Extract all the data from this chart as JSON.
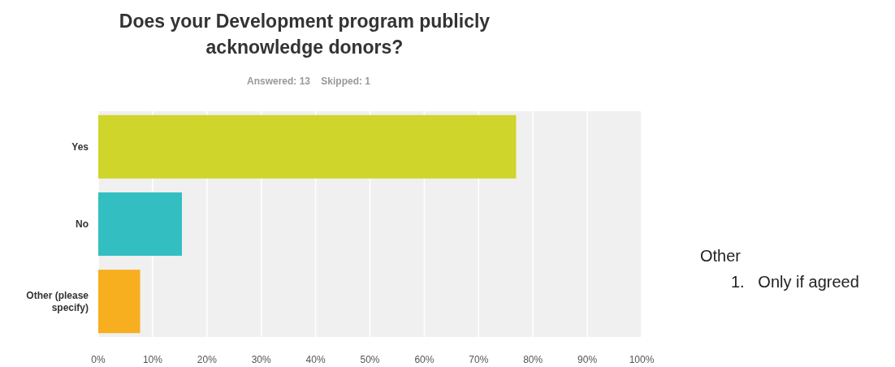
{
  "chart_data": {
    "type": "bar",
    "orientation": "horizontal",
    "title": "Does your Development program publicly\nacknowledge donors?",
    "subtitle": "Answered: 13    Skipped: 1",
    "categories": [
      "Yes",
      "No",
      "Other (please\nspecify)"
    ],
    "values": [
      76.9,
      15.4,
      7.7
    ],
    "colors": [
      "#cfd52a",
      "#33bfc1",
      "#f7ae1f"
    ],
    "xlim": [
      0,
      100
    ],
    "xticks": [
      {
        "value": 0,
        "label": "0%"
      },
      {
        "value": 10,
        "label": "10%"
      },
      {
        "value": 20,
        "label": "20%"
      },
      {
        "value": 30,
        "label": "30%"
      },
      {
        "value": 40,
        "label": "40%"
      },
      {
        "value": 50,
        "label": "50%"
      },
      {
        "value": 60,
        "label": "60%"
      },
      {
        "value": 70,
        "label": "70%"
      },
      {
        "value": 80,
        "label": "80%"
      },
      {
        "value": 90,
        "label": "90%"
      },
      {
        "value": 100,
        "label": "100%"
      }
    ],
    "grid": "x",
    "annotations": [
      "Other",
      "1.   Only if agreed"
    ]
  }
}
